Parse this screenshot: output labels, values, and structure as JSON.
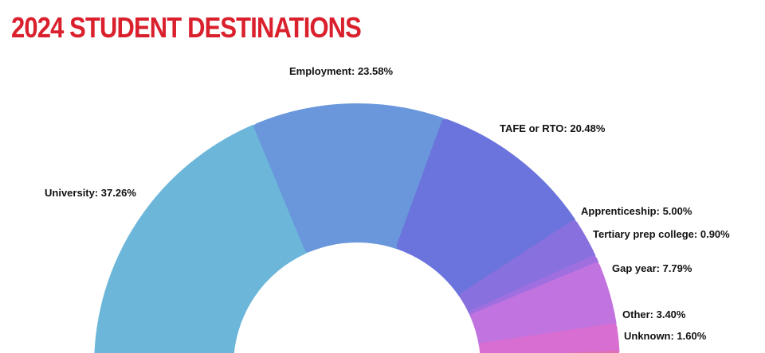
{
  "title": "2024 STUDENT DESTINATIONS",
  "colors": {
    "title": "#d9202c",
    "background": "#ffffff"
  },
  "chart_data": {
    "type": "pie",
    "style": "half-donut",
    "title": "2024 STUDENT DESTINATIONS",
    "slices": [
      {
        "name": "University",
        "value": 37.26,
        "label": "University: 37.26%",
        "color": "#6cb6da"
      },
      {
        "name": "Employment",
        "value": 23.58,
        "label": "Employment: 23.58%",
        "color": "#6a97dc"
      },
      {
        "name": "TAFE or RTO",
        "value": 20.48,
        "label": "TAFE or RTO: 20.48%",
        "color": "#6b74dc"
      },
      {
        "name": "Apprenticeship",
        "value": 5.0,
        "label": "Apprenticeship: 5.00%",
        "color": "#8870de"
      },
      {
        "name": "Tertiary prep college",
        "value": 0.9,
        "label": "Tertiary prep college: 0.90%",
        "color": "#a06fdf"
      },
      {
        "name": "Gap year",
        "value": 7.79,
        "label": "Gap year: 7.79%",
        "color": "#c173e0"
      },
      {
        "name": "Other",
        "value": 3.4,
        "label": "Other: 3.40%",
        "color": "#d86ed1"
      },
      {
        "name": "Unknown",
        "value": 1.6,
        "label": "Unknown: 1.60%",
        "color": "#e070b4"
      }
    ]
  }
}
